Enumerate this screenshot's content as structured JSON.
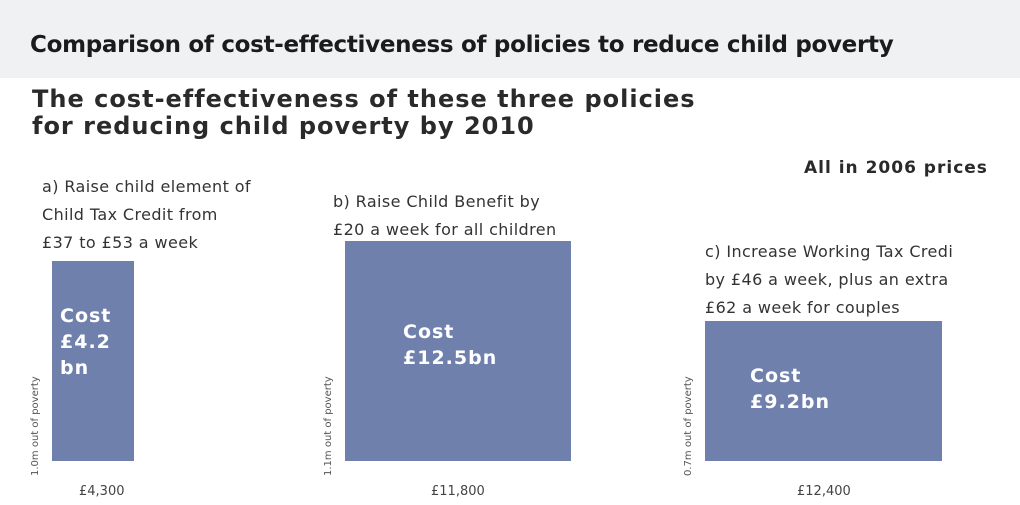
{
  "page": {
    "title": "Comparison of cost-effectiveness of policies to reduce child poverty"
  },
  "figure": {
    "heading_line1": "The cost-effectiveness of these three policies",
    "heading_line2": "for reducing child poverty by 2010",
    "prices_note": "All in 2006 prices"
  },
  "chart_data": {
    "type": "bar",
    "title": "The cost-effectiveness of these three policies for reducing child poverty by 2010",
    "note": "All in 2006 prices",
    "bar_color": "#7080ad",
    "bars": [
      {
        "label_lines": [
          "a) Raise child element of",
          "Child Tax Credit from",
          "£37 to £53 a week"
        ],
        "cost_lines": [
          "Cost",
          "£4.2",
          "bn"
        ],
        "cost_bn": 4.2,
        "children_out_of_poverty_m": 1.0,
        "y_label": "1.0m out of poverty",
        "cost_per_child_gbp": 4300,
        "x_value_label": "£4,300"
      },
      {
        "label_lines": [
          "b) Raise Child Benefit by",
          "£20 a week for all children"
        ],
        "cost_lines": [
          "Cost",
          "£12.5bn"
        ],
        "cost_bn": 12.5,
        "children_out_of_poverty_m": 1.1,
        "y_label": "1.1m out of poverty",
        "cost_per_child_gbp": 11800,
        "x_value_label": "£11,800"
      },
      {
        "label_lines": [
          "c) Increase Working Tax Credi",
          "by £46 a week, plus an extra",
          "£62 a week for couples"
        ],
        "cost_lines": [
          "Cost",
          "£9.2bn"
        ],
        "cost_bn": 9.2,
        "children_out_of_poverty_m": 0.7,
        "y_label": "0.7m out of poverty",
        "cost_per_child_gbp": 12400,
        "x_value_label": "£12,400"
      }
    ]
  }
}
